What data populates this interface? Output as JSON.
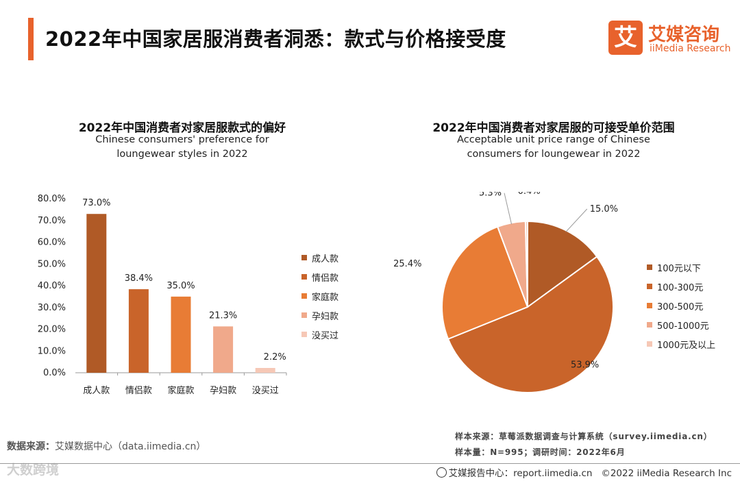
{
  "page": {
    "title": "2022年中国家居服消费者洞悉：款式与价格接受度",
    "logo_mark": "艾",
    "logo_cn": "艾媒咨询",
    "logo_en": "iiMedia Research"
  },
  "colors": {
    "accent": "#e8622c",
    "c1": "#b05a26",
    "c2": "#c9642a",
    "c3": "#e87c35",
    "c4": "#f0a98b",
    "c5": "#f6c8b6"
  },
  "chart_data": [
    {
      "type": "bar",
      "title": "2022年中国消费者对家居服款式的偏好",
      "subtitle_line1": "Chinese consumers' preference for",
      "subtitle_line2": "loungewear styles in 2022",
      "categories": [
        "成人款",
        "情侣款",
        "家庭款",
        "孕妇款",
        "没买过"
      ],
      "values": [
        73.0,
        38.4,
        35.0,
        21.3,
        2.2
      ],
      "data_labels": [
        "73.0%",
        "38.4%",
        "35.0%",
        "21.3%",
        "2.2%"
      ],
      "y_ticks": [
        "0.0%",
        "10.0%",
        "20.0%",
        "30.0%",
        "40.0%",
        "50.0%",
        "60.0%",
        "70.0%",
        "80.0%"
      ],
      "ylim": [
        0,
        80
      ],
      "legend": [
        "成人款",
        "情侣款",
        "家庭款",
        "孕妇款",
        "没买过"
      ],
      "legend_position": "right",
      "grid": false
    },
    {
      "type": "pie",
      "title": "2022年中国消费者对家居服的可接受单价范围",
      "subtitle_line1": "Acceptable unit price range of Chinese",
      "subtitle_line2": "consumers for loungewear in 2022",
      "labels": [
        "100元以下",
        "100-300元",
        "300-500元",
        "500-1000元",
        "1000元及以上"
      ],
      "values": [
        15.0,
        53.9,
        25.4,
        5.3,
        0.4
      ],
      "data_labels": [
        "15.0%",
        "53.9%",
        "25.4%",
        "5.3%",
        "0.4%"
      ],
      "legend_position": "right"
    }
  ],
  "footer": {
    "source_label": "数据来源：",
    "source_text": "艾媒数据中心（data.iimedia.cn）",
    "sample_source": "样本来源：草莓派数据调查与计算系统（survey.iimedia.cn）",
    "sample_size": "样本量：N=995；调研时间：2022年6月",
    "report": "艾媒报告中心：report.iimedia.cn",
    "copyright": "©2022  iiMedia Research  Inc",
    "watermark": "大数跨境"
  }
}
